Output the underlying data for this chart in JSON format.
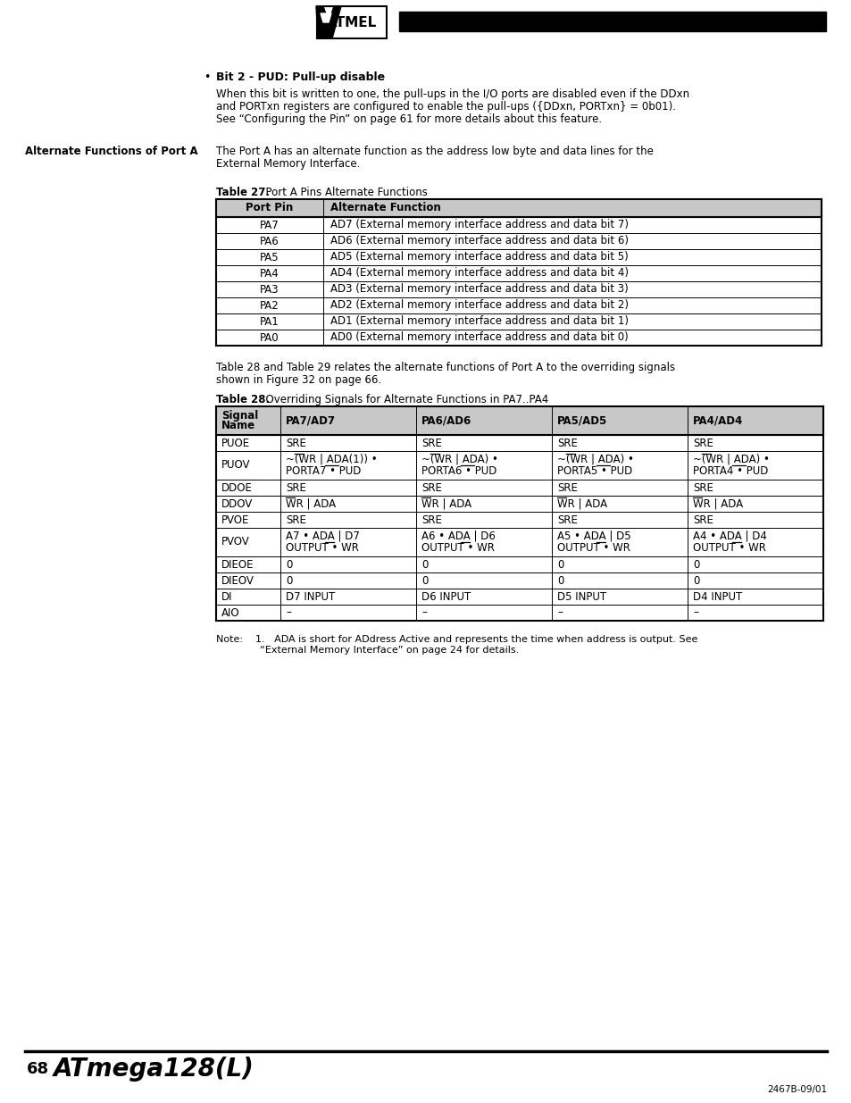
{
  "page_number": "68",
  "doc_number": "2467B-09/01",
  "bullet_header": "Bit 2 - PUD: Pull-up disable",
  "bullet_body_lines": [
    "When this bit is written to one, the pull-ups in the I/O ports are disabled even if the DDxn",
    "and PORTxn registers are configured to enable the pull-ups ({DDxn, PORTxn} = 0b01).",
    "See “Configuring the Pin” on page 61 for more details about this feature."
  ],
  "section_label": "Alternate Functions of Port A",
  "section_body_lines": [
    "The Port A has an alternate function as the address low byte and data lines for the",
    "External Memory Interface."
  ],
  "table27_title_bold": "Table 27.",
  "table27_title_normal": "  Port A Pins Alternate Functions",
  "table27_headers": [
    "Port Pin",
    "Alternate Function"
  ],
  "table27_rows": [
    [
      "PA7",
      "AD7 (External memory interface address and data bit 7)"
    ],
    [
      "PA6",
      "AD6 (External memory interface address and data bit 6)"
    ],
    [
      "PA5",
      "AD5 (External memory interface address and data bit 5)"
    ],
    [
      "PA4",
      "AD4 (External memory interface address and data bit 4)"
    ],
    [
      "PA3",
      "AD3 (External memory interface address and data bit 3)"
    ],
    [
      "PA2",
      "AD2 (External memory interface address and data bit 2)"
    ],
    [
      "PA1",
      "AD1 (External memory interface address and data bit 1)"
    ],
    [
      "PA0",
      "AD0 (External memory interface address and data bit 0)"
    ]
  ],
  "between_tables_lines": [
    "Table 28 and Table 29 relates the alternate functions of Port A to the overriding signals",
    "shown in Figure 32 on page 66."
  ],
  "table28_title_bold": "Table 28.",
  "table28_title_normal": "  Overriding Signals for Alternate Functions in PA7..PA4",
  "table28_col_widths": [
    72,
    152,
    152,
    152,
    152
  ],
  "table28_headers": [
    "Signal\nName",
    "PA7/AD7",
    "PA6/AD6",
    "PA5/AD5",
    "PA4/AD4"
  ],
  "table28_rows": [
    [
      "PUOE",
      "SRE",
      "SRE",
      "SRE",
      "SRE"
    ],
    [
      "PUOV",
      "~(WR | ADA(1)) •\nPORTA7 • PUD",
      "~(WR | ADA) •\nPORTA6 • PUD",
      "~(WR | ADA) •\nPORTA5 • PUD",
      "~(WR | ADA) •\nPORTA4 • PUD"
    ],
    [
      "DDOE",
      "SRE",
      "SRE",
      "SRE",
      "SRE"
    ],
    [
      "DDOV",
      "WR | ADA",
      "WR | ADA",
      "WR | ADA",
      "WR | ADA"
    ],
    [
      "PVOE",
      "SRE",
      "SRE",
      "SRE",
      "SRE"
    ],
    [
      "PVOV",
      "A7 • ADA | D7\nOUTPUT • WR",
      "A6 • ADA | D6\nOUTPUT • WR",
      "A5 • ADA | D5\nOUTPUT • WR",
      "A4 • ADA | D4\nOUTPUT • WR"
    ],
    [
      "DIEOE",
      "0",
      "0",
      "0",
      "0"
    ],
    [
      "DIEOV",
      "0",
      "0",
      "0",
      "0"
    ],
    [
      "DI",
      "D7 INPUT",
      "D6 INPUT",
      "D5 INPUT",
      "D4 INPUT"
    ],
    [
      "AIO",
      "–",
      "–",
      "–",
      "–"
    ]
  ],
  "note_lines": [
    "Note:    1.   ADA is short for ADdress Active and represents the time when address is output. See",
    "              “External Memory Interface” on page 24 for details."
  ],
  "bg_color": "#ffffff",
  "header_bg": "#c8c8c8"
}
